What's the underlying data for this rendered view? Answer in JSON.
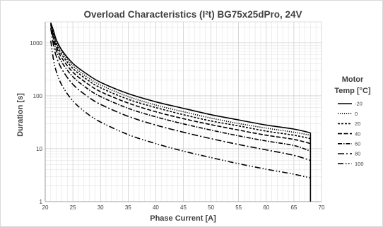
{
  "chart_data": {
    "type": "line",
    "title": "Overload Characteristics (I²t) BG75x25dPro, 24V",
    "xlabel": "Phase Current [A]",
    "ylabel": "Duration [s]",
    "xlim": [
      20,
      70
    ],
    "ylim": [
      1,
      2500
    ],
    "y_scale": "log",
    "grid": true,
    "x_ticks": [
      "20",
      "25",
      "30",
      "35",
      "40",
      "45",
      "50",
      "55",
      "60",
      "65",
      "70"
    ],
    "y_ticks": [
      "1",
      "10",
      "100",
      "1000"
    ],
    "legend": {
      "title_line1": "Motor",
      "title_line2": "Temp [°C]",
      "placement": "right"
    },
    "x": [
      21,
      21.5,
      22,
      23,
      25,
      27.5,
      30,
      35,
      40,
      45,
      50,
      55,
      60,
      65,
      68
    ],
    "series": [
      {
        "name": "-20",
        "dash": "solid",
        "values": [
          2400,
          1700,
          1150,
          730,
          410,
          260,
          180,
          110,
          77,
          58,
          44,
          35,
          28,
          23.5,
          20
        ]
      },
      {
        "name": "0",
        "dash": "dot",
        "values": [
          2400,
          1600,
          1050,
          670,
          370,
          230,
          160,
          97,
          67,
          50,
          38,
          30,
          24.5,
          20.5,
          18
        ]
      },
      {
        "name": "20",
        "dash": "dash",
        "values": [
          2400,
          1450,
          960,
          600,
          330,
          205,
          142,
          86,
          60,
          44,
          33.5,
          27,
          21.5,
          18,
          15.5
        ]
      },
      {
        "name": "40",
        "dash": "longdash",
        "values": [
          2300,
          1300,
          850,
          520,
          280,
          174,
          120,
          73,
          50,
          37,
          28.5,
          22.5,
          18,
          15,
          12.5
        ]
      },
      {
        "name": "60",
        "dash": "dashdot",
        "values": [
          2200,
          1150,
          720,
          430,
          230,
          140,
          97,
          58,
          40,
          29.5,
          22.5,
          17.5,
          14,
          11.5,
          9
        ]
      },
      {
        "name": "80",
        "dash": "longdashdot",
        "values": [
          1900,
          900,
          560,
          320,
          165,
          100,
          69,
          41,
          28,
          20.5,
          15.5,
          12,
          9.5,
          7.5,
          6
        ]
      },
      {
        "name": "100",
        "dash": "dashdotdot",
        "values": [
          1100,
          480,
          290,
          160,
          80,
          47,
          32,
          18.5,
          12.5,
          9,
          6.8,
          5.2,
          4.1,
          3.3,
          2.8
        ]
      }
    ]
  }
}
